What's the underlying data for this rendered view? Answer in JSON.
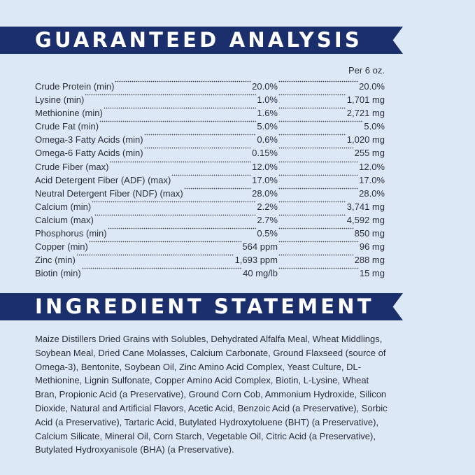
{
  "analysis": {
    "heading": "GUARANTEED ANALYSIS",
    "per_label": "Per 6 oz.",
    "rows": [
      [
        "Crude Protein (min)",
        "20.0%",
        "20.0%"
      ],
      [
        "Lysine (min)",
        "1.0%",
        "1,701 mg"
      ],
      [
        "Methionine (min)",
        "1.6%",
        "2,721 mg"
      ],
      [
        "Crude Fat (min)",
        "5.0%",
        "5.0%"
      ],
      [
        "Omega-3 Fatty Acids (min)",
        "0.6%",
        "1,020 mg"
      ],
      [
        "Omega-6 Fatty Acids (min)",
        "0.15%",
        "255 mg"
      ],
      [
        "Crude Fiber (max)",
        "12.0%",
        "12.0%"
      ],
      [
        "Acid Detergent Fiber (ADF) (max)",
        "17.0%",
        "17.0%"
      ],
      [
        "Neutral Detergent Fiber (NDF) (max)",
        "28.0%",
        "28.0%"
      ],
      [
        "Calcium (min)",
        "2.2%",
        "3,741 mg"
      ],
      [
        "Calcium (max)",
        "2.7%",
        "4,592 mg"
      ],
      [
        "Phosphorus (min)",
        "0.5%",
        "850 mg"
      ],
      [
        "Copper (min)",
        "564 ppm",
        "96 mg"
      ],
      [
        "Zinc (min)",
        "1,693 ppm",
        "288 mg"
      ],
      [
        "Biotin (min)",
        "40 mg/lb",
        "15 mg"
      ]
    ]
  },
  "ingredients": {
    "heading": "INGREDIENT STATEMENT",
    "text": "Maize Distillers Dried Grains with Solubles, Dehydrated Alfalfa Meal, Wheat Middlings, Soybean Meal, Dried Cane Molasses, Calcium Carbonate, Ground Flaxseed (source of Omega-3), Bentonite, Soybean Oil, Zinc Amino Acid Complex, Yeast Culture, DL-Methionine, Lignin Sulfonate, Copper Amino Acid Complex, Biotin, L-Lysine, Wheat Bran, Propionic Acid (a Preservative), Ground Corn Cob, Ammonium Hydroxide, Silicon Dioxide, Natural and Artificial Flavors, Acetic Acid, Benzoic Acid (a Preservative), Sorbic Acid (a Preservative), Tartaric Acid, Butylated Hydroxytoluene (BHT) (a Preservative), Calcium Silicate, Mineral Oil, Corn Starch, Vegetable Oil, Citric Acid (a Preservative), Butylated Hydroxyanisole (BHA) (a Preservative)."
  }
}
